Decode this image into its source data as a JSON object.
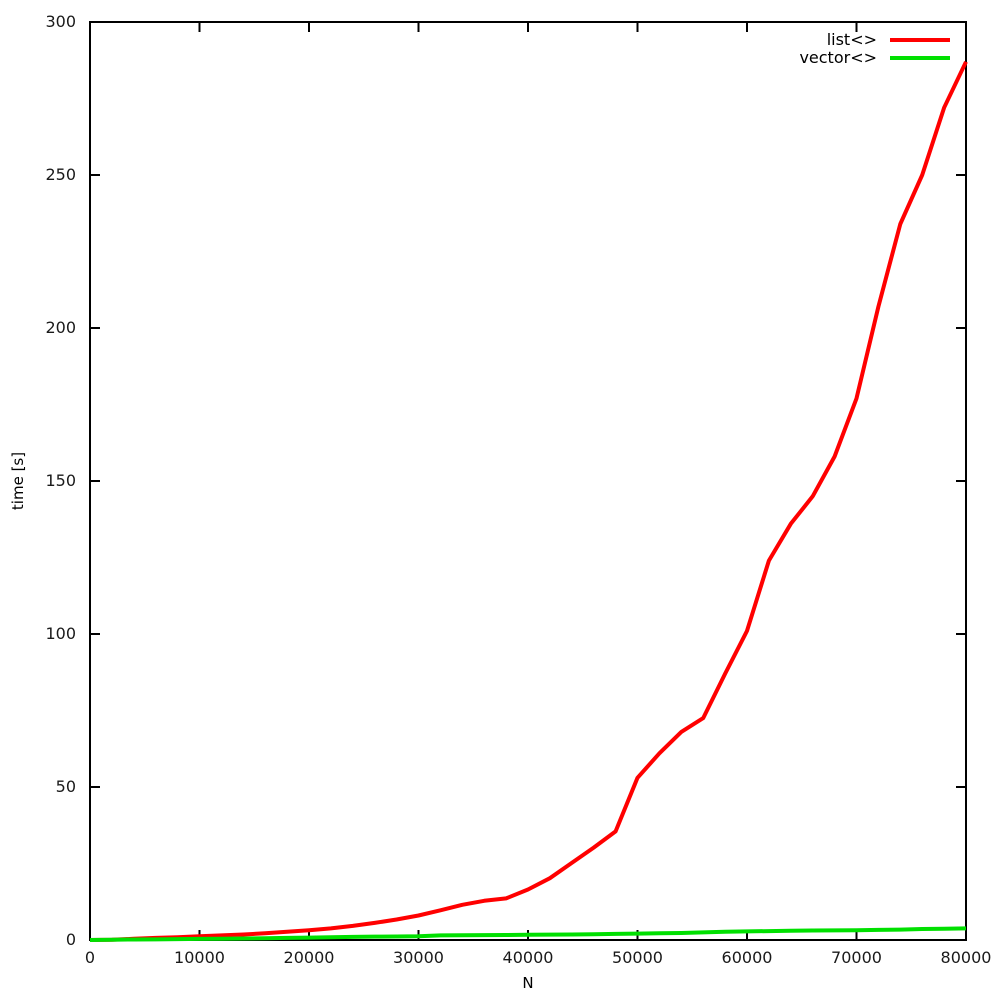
{
  "figure": {
    "background": "#ffffff",
    "border_color": "#000000",
    "text_color": "#1a1a1a"
  },
  "chart_data": {
    "type": "line",
    "title": "",
    "xlabel": "N",
    "ylabel": "time [s]",
    "xlim": [
      0,
      80000
    ],
    "ylim": [
      0,
      300
    ],
    "x_ticks": [
      0,
      10000,
      20000,
      30000,
      40000,
      50000,
      60000,
      70000,
      80000
    ],
    "y_ticks": [
      0,
      50,
      100,
      150,
      200,
      250,
      300
    ],
    "grid": false,
    "legend_position": "top-right",
    "x": [
      0,
      2000,
      4000,
      6000,
      8000,
      10000,
      12000,
      14000,
      16000,
      18000,
      20000,
      22000,
      24000,
      26000,
      28000,
      30000,
      32000,
      34000,
      36000,
      38000,
      40000,
      42000,
      44000,
      46000,
      48000,
      50000,
      52000,
      54000,
      56000,
      58000,
      60000,
      62000,
      64000,
      66000,
      68000,
      70000,
      72000,
      74000,
      76000,
      78000,
      80000
    ],
    "series": [
      {
        "name": "list<>",
        "color": "#ff0000",
        "values": [
          0,
          0.1,
          0.4,
          0.7,
          0.9,
          1.2,
          1.5,
          1.8,
          2.2,
          2.7,
          3.2,
          3.8,
          4.6,
          5.6,
          6.7,
          8.0,
          9.7,
          11.5,
          12.8,
          13.6,
          16.5,
          20.2,
          25.2,
          30.2,
          35.5,
          53.0,
          61.0,
          68.0,
          72.5,
          87.0,
          101.0,
          124.0,
          136.0,
          145.0,
          158.0,
          177.0,
          207.0,
          234.0,
          250.0,
          272.0,
          287.0
        ]
      },
      {
        "name": "vector<>",
        "color": "#00e000",
        "values": [
          0,
          0.1,
          0.15,
          0.2,
          0.3,
          0.35,
          0.4,
          0.5,
          0.6,
          0.7,
          0.8,
          0.9,
          1.0,
          1.1,
          1.15,
          1.2,
          1.5,
          1.55,
          1.6,
          1.65,
          1.7,
          1.75,
          1.8,
          1.9,
          2.0,
          2.1,
          2.2,
          2.3,
          2.5,
          2.7,
          2.8,
          2.9,
          3.0,
          3.1,
          3.15,
          3.2,
          3.3,
          3.4,
          3.6,
          3.7,
          3.8
        ]
      }
    ]
  }
}
